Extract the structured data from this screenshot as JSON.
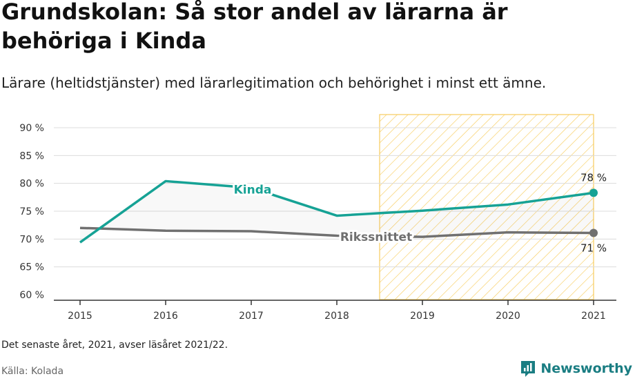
{
  "title": "Grundskolan: Så stor andel av lärarna är behöriga i Kinda",
  "subtitle": "Lärare (heltidstjänster) med lärarlegitimation och behörighet i minst ett ämne.",
  "note": "Det senaste året, 2021, avser läsåret 2021/22.",
  "source": "Källa: Kolada",
  "brand": {
    "name": "Newsworthy",
    "icon": "newsworthy-logo-icon"
  },
  "colors": {
    "kinda": "#16a295",
    "riks": "#707070",
    "highlight": "#f6c443",
    "grid": "#dcdcdc"
  },
  "chart_data": {
    "type": "line",
    "x": [
      2015,
      2016,
      2017,
      2018,
      2019,
      2020,
      2021
    ],
    "x_tick_labels": [
      "2015",
      "2016",
      "2017",
      "2018",
      "2019",
      "2020",
      "2021"
    ],
    "y_ticks": [
      60,
      65,
      70,
      75,
      80,
      85,
      90
    ],
    "y_tick_labels": [
      "60 %",
      "65 %",
      "70 %",
      "75 %",
      "80 %",
      "85 %",
      "90 %"
    ],
    "ylim": [
      60,
      90
    ],
    "grid": true,
    "highlight_range": [
      2018.5,
      2021
    ],
    "series": [
      {
        "name": "Kinda",
        "values": [
          69.4,
          80.4,
          79.2,
          74.2,
          75.1,
          76.2,
          78.3
        ],
        "end_label": "78 %"
      },
      {
        "name": "Rikssnittet",
        "values": [
          72.0,
          71.5,
          71.4,
          70.6,
          70.4,
          71.2,
          71.1
        ],
        "end_label": "71 %"
      }
    ]
  }
}
